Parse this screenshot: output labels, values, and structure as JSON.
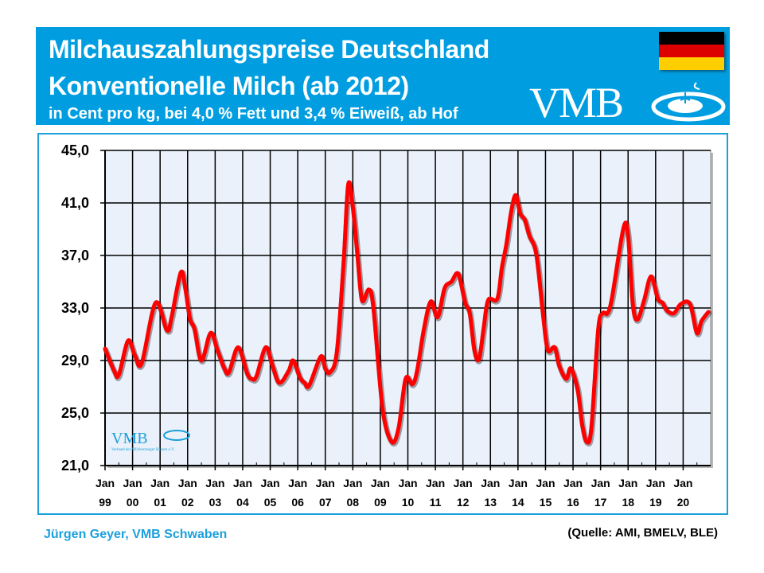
{
  "header": {
    "title_line1": "Milchauszahlungspreise Deutschland",
    "title_line2": "Konventionelle Milch (ab 2012)",
    "subtitle": "in Cent pro kg, bei 4,0 % Fett und 3,4 % Eiweiß, ab Hof",
    "logo_text": "VMB",
    "flag_colors": [
      "#000000",
      "#dd0000",
      "#ffce00"
    ]
  },
  "watermark": {
    "logo_text": "VMB",
    "tagline": "Verband der Milcherzeuger Bayern e.V."
  },
  "footer": {
    "author": "Jürgen Geyer, VMB Schwaben",
    "source": "(Quelle: AMI, BMELV, BLE)"
  },
  "colors": {
    "header_bg": "#009ee0",
    "plot_bg": "#eaf1fa",
    "line": "#ff0000",
    "frame": "#1ca0dc"
  },
  "chart_data": {
    "type": "line",
    "ylim": [
      21,
      45
    ],
    "yticks": [
      "21,0",
      "25,0",
      "29,0",
      "33,0",
      "37,0",
      "41,0",
      "45,0"
    ],
    "xlim": [
      "1999-01",
      "2021-01"
    ],
    "xtick_month": "Jan",
    "xtick_years": [
      "99",
      "00",
      "01",
      "02",
      "03",
      "04",
      "05",
      "06",
      "07",
      "08",
      "09",
      "10",
      "11",
      "12",
      "13",
      "14",
      "15",
      "16",
      "17",
      "18",
      "19",
      "20"
    ],
    "grid": true,
    "series": [
      {
        "points": [
          [
            "1999-01",
            29.9
          ],
          [
            "1999-05",
            28.2
          ],
          [
            "1999-07",
            27.9
          ],
          [
            "1999-11",
            30.5
          ],
          [
            "2000-02",
            29.4
          ],
          [
            "2000-05",
            28.8
          ],
          [
            "2000-11",
            33.4
          ],
          [
            "2001-04",
            31.3
          ],
          [
            "2001-06",
            32.3
          ],
          [
            "2001-10",
            35.7
          ],
          [
            "2001-12",
            34.5
          ],
          [
            "2002-02",
            32.2
          ],
          [
            "2002-04",
            31.4
          ],
          [
            "2002-07",
            29.0
          ],
          [
            "2002-11",
            31.1
          ],
          [
            "2003-02",
            29.8
          ],
          [
            "2003-05",
            28.4
          ],
          [
            "2003-07",
            28.1
          ],
          [
            "2003-11",
            30.0
          ],
          [
            "2004-03",
            28.0
          ],
          [
            "2004-05",
            27.6
          ],
          [
            "2004-07",
            27.8
          ],
          [
            "2004-11",
            30.0
          ],
          [
            "2005-02",
            28.6
          ],
          [
            "2005-05",
            27.3
          ],
          [
            "2005-09",
            28.2
          ],
          [
            "2005-11",
            29.0
          ],
          [
            "2006-02",
            27.7
          ],
          [
            "2006-04",
            27.3
          ],
          [
            "2006-06",
            27.1
          ],
          [
            "2006-11",
            29.3
          ],
          [
            "2007-01",
            28.4
          ],
          [
            "2007-03",
            28.1
          ],
          [
            "2007-06",
            29.6
          ],
          [
            "2007-09",
            36.5
          ],
          [
            "2007-11",
            42.4
          ],
          [
            "2008-01",
            40.7
          ],
          [
            "2008-03",
            37.1
          ],
          [
            "2008-05",
            33.6
          ],
          [
            "2008-08",
            34.4
          ],
          [
            "2008-10",
            33.0
          ],
          [
            "2009-02",
            25.3
          ],
          [
            "2009-06",
            22.8
          ],
          [
            "2009-09",
            23.9
          ],
          [
            "2009-12",
            27.6
          ],
          [
            "2010-03",
            27.2
          ],
          [
            "2010-05",
            28.2
          ],
          [
            "2010-08",
            31.4
          ],
          [
            "2010-11",
            33.5
          ],
          [
            "2011-02",
            32.3
          ],
          [
            "2011-05",
            34.5
          ],
          [
            "2011-08",
            35.0
          ],
          [
            "2011-11",
            35.6
          ],
          [
            "2012-02",
            33.4
          ],
          [
            "2012-04",
            32.6
          ],
          [
            "2012-06",
            29.8
          ],
          [
            "2012-08",
            29.1
          ],
          [
            "2012-10",
            31.4
          ],
          [
            "2012-12",
            33.6
          ],
          [
            "2013-04",
            33.7
          ],
          [
            "2013-06",
            36.1
          ],
          [
            "2013-08",
            37.9
          ],
          [
            "2013-10",
            40.3
          ],
          [
            "2013-12",
            41.6
          ],
          [
            "2014-02",
            40.2
          ],
          [
            "2014-04",
            39.7
          ],
          [
            "2014-06",
            38.5
          ],
          [
            "2014-09",
            37.1
          ],
          [
            "2014-12",
            32.4
          ],
          [
            "2015-02",
            29.8
          ],
          [
            "2015-05",
            30.0
          ],
          [
            "2015-07",
            28.6
          ],
          [
            "2015-10",
            27.6
          ],
          [
            "2015-12",
            28.4
          ],
          [
            "2016-03",
            26.8
          ],
          [
            "2016-05",
            24.1
          ],
          [
            "2016-07",
            22.8
          ],
          [
            "2016-09",
            23.9
          ],
          [
            "2016-12",
            31.4
          ],
          [
            "2017-02",
            32.6
          ],
          [
            "2017-04",
            32.6
          ],
          [
            "2017-06",
            33.8
          ],
          [
            "2017-11",
            39.1
          ],
          [
            "2018-01",
            38.5
          ],
          [
            "2018-03",
            33.4
          ],
          [
            "2018-05",
            32.1
          ],
          [
            "2018-08",
            33.6
          ],
          [
            "2018-11",
            35.4
          ],
          [
            "2019-02",
            33.7
          ],
          [
            "2019-04",
            33.4
          ],
          [
            "2019-06",
            32.8
          ],
          [
            "2019-09",
            32.6
          ],
          [
            "2019-12",
            33.3
          ],
          [
            "2020-04",
            33.3
          ],
          [
            "2020-07",
            31.1
          ],
          [
            "2020-09",
            32.0
          ],
          [
            "2020-12",
            32.7
          ]
        ]
      }
    ]
  }
}
